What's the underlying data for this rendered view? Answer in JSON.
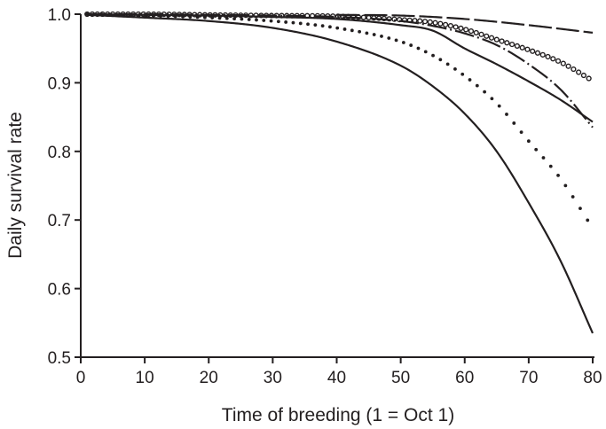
{
  "chart_data": {
    "type": "line",
    "title": "",
    "xlabel": "Time of breeding (1 = Oct 1)",
    "ylabel": "Daily survival rate",
    "xlim": [
      0,
      80
    ],
    "ylim": [
      0.5,
      1.0
    ],
    "xticks": [
      "0",
      "10",
      "20",
      "30",
      "40",
      "50",
      "60",
      "70",
      "80"
    ],
    "yticks": [
      "0.5",
      "0.6",
      "0.7",
      "0.8",
      "0.9",
      "1.0"
    ],
    "grid": false,
    "legend": "none",
    "series": [
      {
        "style": "solid",
        "x": [
          1,
          10,
          20,
          30,
          40,
          50,
          55,
          60,
          65,
          70,
          75,
          80
        ],
        "y": [
          0.999,
          0.995,
          0.99,
          0.98,
          0.96,
          0.925,
          0.895,
          0.855,
          0.8,
          0.725,
          0.64,
          0.535
        ]
      },
      {
        "style": "small-dots",
        "x": [
          1,
          10,
          20,
          30,
          40,
          50,
          55,
          60,
          65,
          70,
          75,
          80
        ],
        "y": [
          1.0,
          0.998,
          0.995,
          0.99,
          0.98,
          0.96,
          0.94,
          0.91,
          0.87,
          0.815,
          0.76,
          0.688
        ]
      },
      {
        "style": "solid",
        "x": [
          1,
          10,
          20,
          30,
          40,
          50,
          55,
          60,
          65,
          70,
          75,
          80
        ],
        "y": [
          1.0,
          0.999,
          0.998,
          0.996,
          0.993,
          0.984,
          0.976,
          0.95,
          0.927,
          0.902,
          0.875,
          0.843
        ]
      },
      {
        "style": "dash-dot",
        "x": [
          1,
          10,
          20,
          30,
          40,
          50,
          55,
          60,
          65,
          70,
          75,
          80
        ],
        "y": [
          1.0,
          1.0,
          0.999,
          0.998,
          0.996,
          0.99,
          0.983,
          0.972,
          0.955,
          0.927,
          0.89,
          0.835
        ]
      },
      {
        "style": "open-circles",
        "x": [
          1,
          10,
          20,
          30,
          40,
          50,
          55,
          60,
          65,
          70,
          75,
          80
        ],
        "y": [
          1.0,
          1.0,
          0.999,
          0.998,
          0.997,
          0.992,
          0.988,
          0.978,
          0.963,
          0.948,
          0.93,
          0.903
        ]
      },
      {
        "style": "long-dash",
        "x": [
          40,
          50,
          60,
          70,
          80
        ],
        "y": [
          0.999,
          0.998,
          0.993,
          0.984,
          0.973
        ]
      }
    ]
  }
}
